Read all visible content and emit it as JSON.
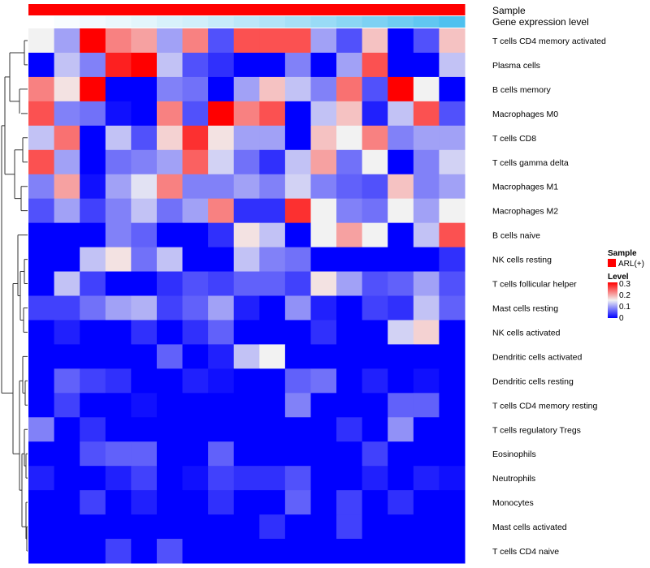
{
  "chart_data": {
    "type": "heatmap",
    "title": "",
    "rows": [
      "T cells CD4 memory activated",
      "Plasma cells",
      "B cells memory",
      "Macrophages M0",
      "T cells CD8",
      "T cells gamma delta",
      "Macrophages M1",
      "Macrophages M2",
      "B cells naive",
      "NK cells resting",
      "T cells follicular helper",
      "Mast cells resting",
      "NK cells activated",
      "Dendritic cells activated",
      "Dendritic cells resting",
      "T cells CD4 memory resting",
      "T cells regulatory  Tregs",
      "Eosinophils",
      "Neutrophils",
      "Monocytes",
      "Mast cells activated",
      "T cells CD4 naive"
    ],
    "n_columns": 17,
    "values": [
      [
        0.15,
        0.1,
        0.3,
        0.22,
        0.2,
        0.1,
        0.22,
        0.05,
        0.25,
        0.25,
        0.25,
        0.1,
        0.05,
        0.18,
        0.0,
        0.05,
        0.18
      ],
      [
        0.0,
        0.12,
        0.08,
        0.28,
        0.3,
        0.12,
        0.05,
        0.03,
        0.0,
        0.0,
        0.08,
        0.0,
        0.1,
        0.25,
        0.0,
        0.0,
        0.12
      ],
      [
        0.22,
        0.16,
        0.3,
        0.0,
        0.0,
        0.08,
        0.07,
        0.0,
        0.1,
        0.18,
        0.12,
        0.08,
        0.23,
        0.05,
        0.3,
        0.15,
        0.0
      ],
      [
        0.25,
        0.08,
        0.07,
        0.01,
        0.0,
        0.22,
        0.05,
        0.3,
        0.22,
        0.25,
        0.0,
        0.12,
        0.18,
        0.02,
        0.12,
        0.25,
        0.05
      ],
      [
        0.12,
        0.23,
        0.0,
        0.12,
        0.05,
        0.17,
        0.27,
        0.16,
        0.1,
        0.1,
        0.0,
        0.18,
        0.15,
        0.22,
        0.08,
        0.1,
        0.1
      ],
      [
        0.25,
        0.1,
        0.0,
        0.07,
        0.08,
        0.1,
        0.24,
        0.13,
        0.07,
        0.03,
        0.12,
        0.2,
        0.07,
        0.15,
        0.0,
        0.08,
        0.13
      ],
      [
        0.08,
        0.2,
        0.01,
        0.1,
        0.14,
        0.22,
        0.08,
        0.08,
        0.1,
        0.08,
        0.13,
        0.08,
        0.06,
        0.05,
        0.18,
        0.08,
        0.1
      ],
      [
        0.05,
        0.1,
        0.04,
        0.08,
        0.12,
        0.07,
        0.1,
        0.22,
        0.03,
        0.03,
        0.27,
        0.15,
        0.08,
        0.07,
        0.15,
        0.1,
        0.15
      ],
      [
        0.0,
        0.0,
        0.0,
        0.08,
        0.06,
        0.0,
        0.0,
        0.03,
        0.16,
        0.12,
        0.0,
        0.15,
        0.2,
        0.15,
        0.0,
        0.12,
        0.25
      ],
      [
        0.0,
        0.0,
        0.12,
        0.16,
        0.07,
        0.12,
        0.0,
        0.0,
        0.12,
        0.08,
        0.07,
        0.0,
        0.0,
        0.0,
        0.0,
        0.0,
        0.03
      ],
      [
        0.0,
        0.12,
        0.04,
        0.0,
        0.0,
        0.03,
        0.05,
        0.04,
        0.06,
        0.06,
        0.04,
        0.16,
        0.1,
        0.05,
        0.06,
        0.1,
        0.05
      ],
      [
        0.04,
        0.04,
        0.07,
        0.1,
        0.11,
        0.04,
        0.06,
        0.1,
        0.02,
        0.0,
        0.09,
        0.02,
        0.0,
        0.04,
        0.03,
        0.12,
        0.06
      ],
      [
        0.0,
        0.02,
        0.0,
        0.0,
        0.03,
        0.0,
        0.03,
        0.06,
        0.0,
        0.0,
        0.0,
        0.03,
        0.0,
        0.0,
        0.13,
        0.17,
        0.0
      ],
      [
        0.0,
        0.0,
        0.0,
        0.0,
        0.0,
        0.06,
        0.0,
        0.02,
        0.12,
        0.15,
        0.0,
        0.0,
        0.0,
        0.0,
        0.0,
        0.0,
        0.0
      ],
      [
        0.0,
        0.06,
        0.04,
        0.03,
        0.0,
        0.0,
        0.02,
        0.01,
        0.0,
        0.0,
        0.06,
        0.07,
        0.0,
        0.02,
        0.0,
        0.01,
        0.0
      ],
      [
        0.0,
        0.04,
        0.0,
        0.0,
        0.01,
        0.0,
        0.0,
        0.0,
        0.0,
        0.0,
        0.08,
        0.0,
        0.0,
        0.0,
        0.06,
        0.06,
        0.0
      ],
      [
        0.08,
        0.0,
        0.03,
        0.0,
        0.0,
        0.0,
        0.0,
        0.0,
        0.0,
        0.0,
        0.0,
        0.0,
        0.03,
        0.0,
        0.09,
        0.0,
        0.0
      ],
      [
        0.0,
        0.0,
        0.05,
        0.06,
        0.06,
        0.0,
        0.0,
        0.06,
        0.0,
        0.0,
        0.0,
        0.0,
        0.0,
        0.04,
        0.0,
        0.0,
        0.0
      ],
      [
        0.02,
        0.0,
        0.0,
        0.02,
        0.04,
        0.0,
        0.01,
        0.04,
        0.03,
        0.03,
        0.05,
        0.0,
        0.0,
        0.02,
        0.0,
        0.02,
        0.01
      ],
      [
        0.0,
        0.0,
        0.04,
        0.0,
        0.02,
        0.0,
        0.0,
        0.03,
        0.0,
        0.0,
        0.06,
        0.0,
        0.04,
        0.0,
        0.03,
        0.0,
        0.0
      ],
      [
        0.0,
        0.0,
        0.0,
        0.0,
        0.0,
        0.0,
        0.0,
        0.0,
        0.0,
        0.03,
        0.0,
        0.0,
        0.04,
        0.0,
        0.0,
        0.0,
        0.0
      ],
      [
        0.0,
        0.0,
        0.0,
        0.04,
        0.0,
        0.05,
        0.0,
        0.0,
        0.0,
        0.0,
        0.0,
        0.0,
        0.0,
        0.0,
        0.0,
        0.0,
        0.0
      ]
    ],
    "column_annotations": [
      {
        "name": "Sample",
        "values": [
          "ARL(+)",
          "ARL(+)",
          "ARL(+)",
          "ARL(+)",
          "ARL(+)",
          "ARL(+)",
          "ARL(+)",
          "ARL(+)",
          "ARL(+)",
          "ARL(+)",
          "ARL(+)",
          "ARL(+)",
          "ARL(+)",
          "ARL(+)",
          "ARL(+)",
          "ARL(+)",
          "ARL(+)"
        ],
        "color": "#ff0000"
      },
      {
        "name": "Gene expression level",
        "values": [
          0.0,
          0.04,
          0.08,
          0.12,
          0.16,
          0.22,
          0.26,
          0.32,
          0.38,
          0.44,
          0.5,
          0.58,
          0.66,
          0.74,
          0.82,
          0.9,
          1.0
        ],
        "color_low": "#ffffff",
        "color_high": "#4fc1ef"
      }
    ],
    "color_scale": {
      "low": "#0000ff",
      "mid": "#f2f2f2",
      "high": "#ff0000",
      "min": 0,
      "mid_value": 0.15,
      "max": 0.3
    },
    "row_dendrogram": true,
    "legend": {
      "sample_title": "Sample",
      "sample_entry": "ARL(+)",
      "sample_color": "#ff0000",
      "level_title": "Level",
      "level_ticks": [
        "0.3",
        "0.2",
        "0.1",
        "0"
      ]
    }
  }
}
